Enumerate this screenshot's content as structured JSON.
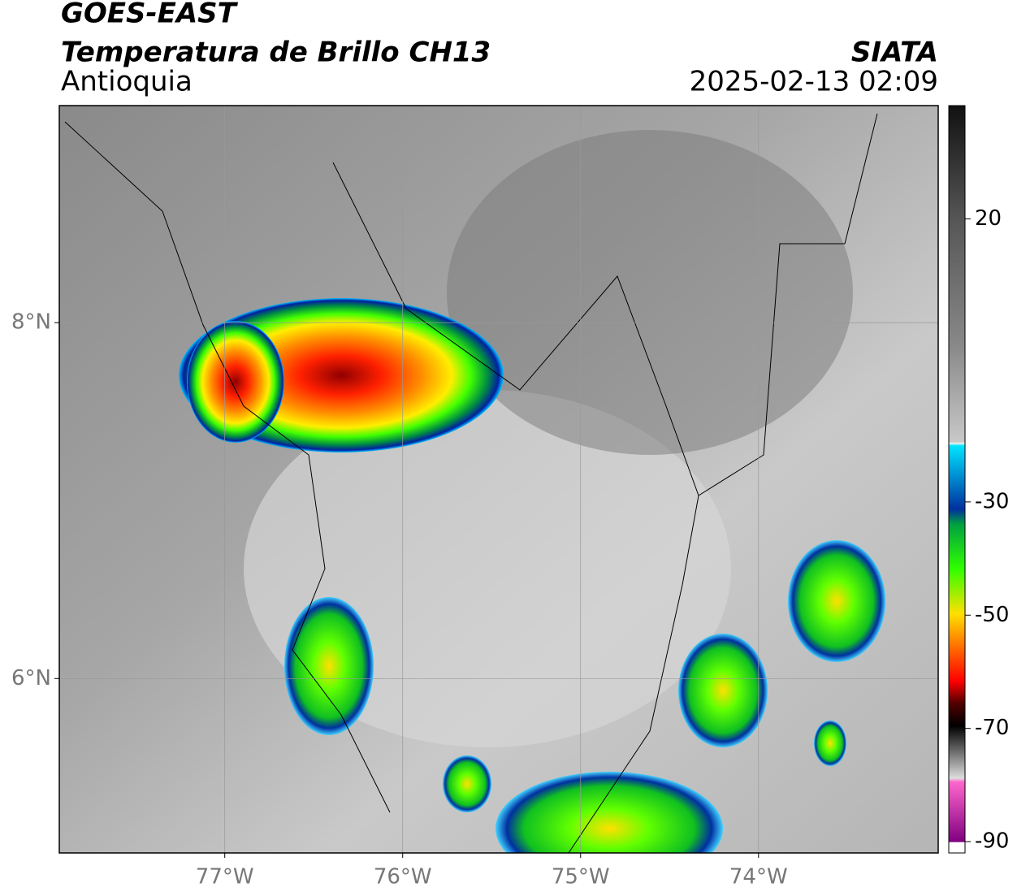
{
  "header": {
    "title": "GOES-EAST",
    "subtitle": "Temperatura de Brillo CH13",
    "region": "Antioquia",
    "source": "SIATA",
    "datetime": "2025-02-13 02:09"
  },
  "map": {
    "xlim": [
      -77.93,
      -72.99
    ],
    "ylim": [
      5.02,
      9.22
    ],
    "xticks": [
      {
        "value": -77,
        "label": "77°W"
      },
      {
        "value": -76,
        "label": "76°W"
      },
      {
        "value": -75,
        "label": "75°W"
      },
      {
        "value": -74,
        "label": "74°W"
      }
    ],
    "yticks": [
      {
        "value": 8,
        "label": "8°N"
      },
      {
        "value": 6,
        "label": "6°N"
      }
    ],
    "grid": true
  },
  "colorbar": {
    "lim": [
      -92,
      40
    ],
    "ticks": [
      20,
      -30,
      -50,
      -70,
      -90
    ]
  }
}
